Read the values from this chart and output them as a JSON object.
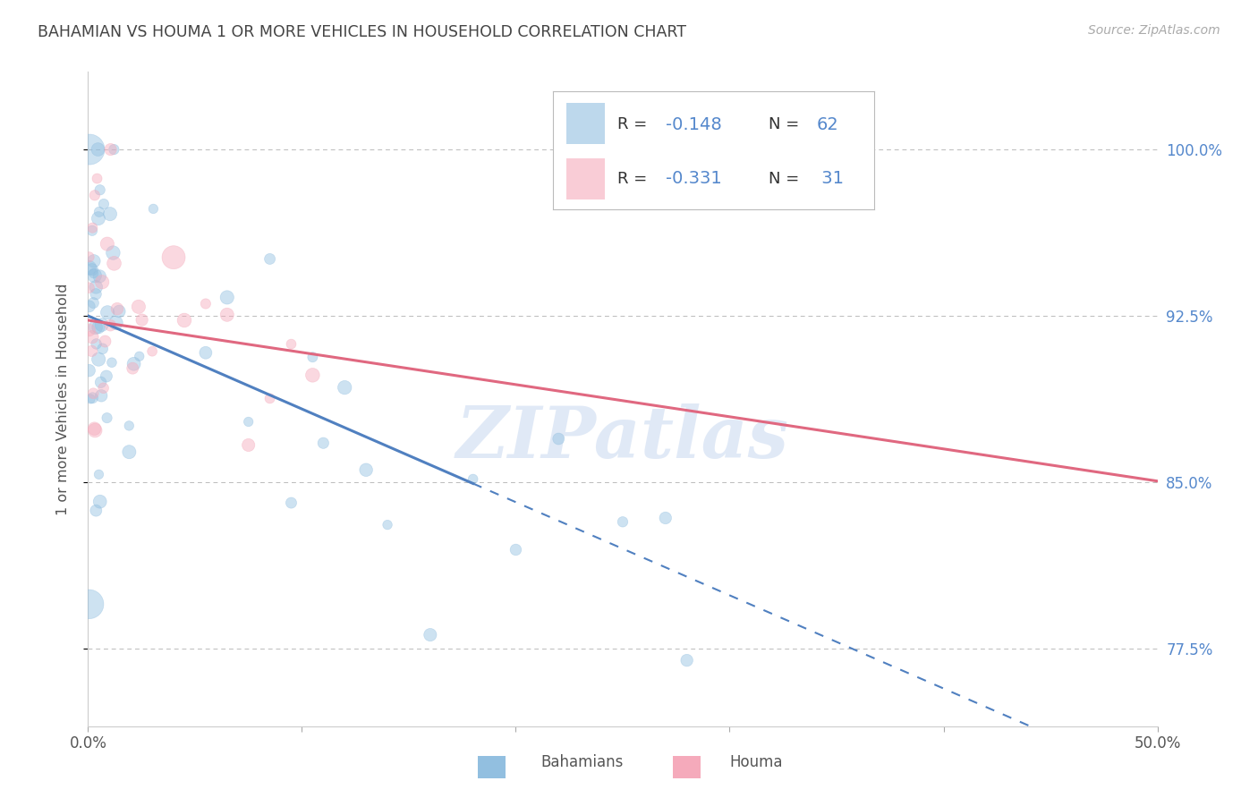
{
  "title": "BAHAMIAN VS HOUMA 1 OR MORE VEHICLES IN HOUSEHOLD CORRELATION CHART",
  "source": "Source: ZipAtlas.com",
  "ylabel": "1 or more Vehicles in Household",
  "xlim": [
    0.0,
    50.0
  ],
  "ylim": [
    74.0,
    103.5
  ],
  "yticks": [
    77.5,
    85.0,
    92.5,
    100.0
  ],
  "xticks": [
    0.0,
    10.0,
    20.0,
    30.0,
    40.0,
    50.0
  ],
  "xtick_labels": [
    "0.0%",
    "",
    "",
    "",
    "",
    "50.0%"
  ],
  "ytick_labels": [
    "77.5%",
    "85.0%",
    "92.5%",
    "100.0%"
  ],
  "legend_line1": "R = -0.148   N = 62",
  "legend_line2": "R = -0.331   N =  31",
  "blue_color": "#92BFE0",
  "pink_color": "#F5AABB",
  "trend_blue": "#5080C0",
  "trend_pink": "#E06880",
  "watermark": "ZIPatlas",
  "watermark_color": "#C8D8F0",
  "background": "#FFFFFF",
  "grid_color": "#BBBBBB",
  "label_color": "#5588CC",
  "title_color": "#444444",
  "blue_trendline_x_start": 0.0,
  "blue_trendline_x_solid_end": 18.0,
  "blue_trendline_x_end": 50.0,
  "blue_trendline_y_at0": 92.5,
  "blue_trendline_slope": -0.42,
  "pink_trendline_x_start": 0.0,
  "pink_trendline_x_end": 50.0,
  "pink_trendline_y_at0": 92.3,
  "pink_trendline_slope": -0.145
}
